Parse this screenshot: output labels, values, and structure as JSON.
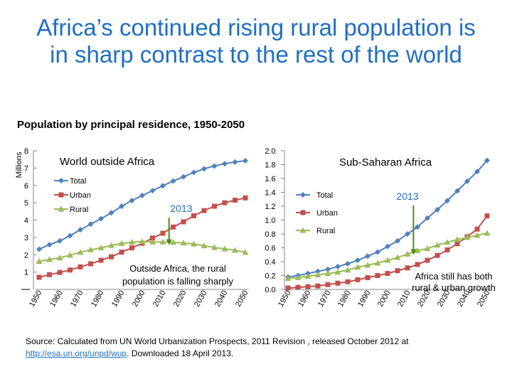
{
  "title_line1": "Africa’s continued rising rural population is",
  "title_line2": "in sharp contrast to the rest of the world",
  "subtitle": "Population by principal residence, 1950-2050",
  "y_axis_unit": "Millions",
  "colors": {
    "total": "#4f81bd",
    "urban": "#c0504d",
    "rural": "#9bbb59",
    "title": "#1f6fc5",
    "arrow": "#4f8a10"
  },
  "chart_data": [
    {
      "type": "line",
      "title": "World outside Africa",
      "x": [
        1950,
        1955,
        1960,
        1965,
        1970,
        1975,
        1980,
        1985,
        1990,
        1995,
        2000,
        2005,
        2010,
        2015,
        2020,
        2025,
        2030,
        2035,
        2040,
        2045,
        2050
      ],
      "x_tick_labels": [
        "1950",
        "1960",
        "1970",
        "1980",
        "1990",
        "2000",
        "2010",
        "2020",
        "2030",
        "2040",
        "2050"
      ],
      "y_tick_labels": [
        "1",
        "2",
        "3",
        "4",
        "5",
        "6",
        "7",
        "8"
      ],
      "ylim": [
        0,
        8
      ],
      "series": [
        {
          "name": "Total",
          "values": [
            2.32,
            2.58,
            2.8,
            3.1,
            3.44,
            3.77,
            4.08,
            4.42,
            4.8,
            5.13,
            5.42,
            5.7,
            5.98,
            6.25,
            6.5,
            6.75,
            6.96,
            7.12,
            7.25,
            7.35,
            7.42
          ]
        },
        {
          "name": "Urban",
          "values": [
            0.7,
            0.85,
            0.98,
            1.12,
            1.3,
            1.48,
            1.68,
            1.88,
            2.15,
            2.4,
            2.66,
            2.96,
            3.24,
            3.6,
            3.9,
            4.25,
            4.55,
            4.8,
            5.0,
            5.15,
            5.28
          ]
        },
        {
          "name": "Rural",
          "values": [
            1.62,
            1.73,
            1.82,
            1.98,
            2.14,
            2.29,
            2.4,
            2.54,
            2.65,
            2.73,
            2.76,
            2.74,
            2.74,
            2.72,
            2.68,
            2.62,
            2.52,
            2.42,
            2.34,
            2.26,
            2.14
          ]
        }
      ],
      "legend": [
        "Total",
        "Urban",
        "Rural"
      ],
      "marker_label": "2013",
      "annotation_line1": "Outside Africa, the rural",
      "annotation_line2": "population is falling sharply"
    },
    {
      "type": "line",
      "title": "Sub-Saharan Africa",
      "x": [
        1950,
        1955,
        1960,
        1965,
        1970,
        1975,
        1980,
        1985,
        1990,
        1995,
        2000,
        2005,
        2010,
        2015,
        2020,
        2025,
        2030,
        2035,
        2040,
        2045,
        2050
      ],
      "x_tick_labels": [
        "1950",
        "1960",
        "1970",
        "1980",
        "1990",
        "2000",
        "2010",
        "2020",
        "2030",
        "2040",
        "2050"
      ],
      "y_tick_labels": [
        "0.0",
        "0.2",
        "0.4",
        "0.6",
        "0.8",
        "1.0",
        "1.2",
        "1.4",
        "1.6",
        "1.8",
        "2.0"
      ],
      "ylim": [
        0,
        2.0
      ],
      "series": [
        {
          "name": "Total",
          "values": [
            0.18,
            0.2,
            0.23,
            0.26,
            0.29,
            0.33,
            0.37,
            0.42,
            0.48,
            0.54,
            0.62,
            0.7,
            0.8,
            0.9,
            1.03,
            1.15,
            1.28,
            1.42,
            1.56,
            1.7,
            1.86
          ]
        },
        {
          "name": "Urban",
          "values": [
            0.02,
            0.03,
            0.04,
            0.05,
            0.07,
            0.09,
            0.11,
            0.14,
            0.17,
            0.2,
            0.23,
            0.27,
            0.31,
            0.36,
            0.42,
            0.49,
            0.57,
            0.66,
            0.76,
            0.87,
            1.06
          ]
        },
        {
          "name": "Rural",
          "values": [
            0.16,
            0.17,
            0.19,
            0.21,
            0.23,
            0.25,
            0.28,
            0.32,
            0.35,
            0.38,
            0.42,
            0.46,
            0.51,
            0.56,
            0.59,
            0.64,
            0.68,
            0.72,
            0.75,
            0.78,
            0.81
          ]
        }
      ],
      "legend": [
        "Total",
        "Urban",
        "Rural"
      ],
      "marker_label": "2013",
      "annotation_line1": "Africa still has both",
      "annotation_line2": "rural & urban growth"
    }
  ],
  "source_text": "Source: Calculated  from UN World Urbanization Prospects, 2011 Revision , released October 2012 at",
  "source_link": "http://esa.un.org/unpd/wup",
  "source_tail": ".  Downloaded 18 April 2013."
}
